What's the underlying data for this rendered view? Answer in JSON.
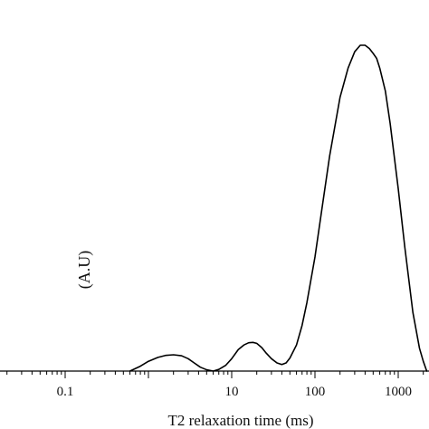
{
  "chart_data": {
    "type": "line",
    "title": "",
    "xlabel": "T2 relaxation time (ms)",
    "ylabel_visible": "(A.U)",
    "x_scale": "log",
    "xlim": [
      0.01,
      2500
    ],
    "ylim": [
      0,
      1.05
    ],
    "x_tick_labels": [
      "0.1",
      "10",
      "100",
      "1000"
    ],
    "x_tick_values": [
      0.1,
      10,
      100,
      1000
    ],
    "grid": false,
    "legend": "none",
    "line_color": "#000000",
    "series": [
      {
        "x": [
          0.6,
          0.8,
          1.0,
          1.3,
          1.6,
          2.0,
          2.5,
          3.0,
          3.5,
          4.2,
          5.0,
          6.0,
          7.0,
          8.5,
          10,
          12,
          14,
          16,
          18,
          20,
          23,
          26,
          30,
          35,
          40,
          45,
          50,
          60,
          70,
          80,
          100,
          120,
          150,
          200,
          250,
          300,
          350,
          400,
          450,
          500,
          550,
          600,
          700,
          800,
          1000,
          1200,
          1500,
          1800,
          2000,
          2200
        ],
        "y": [
          0.0,
          0.015,
          0.03,
          0.042,
          0.048,
          0.05,
          0.047,
          0.038,
          0.026,
          0.012,
          0.004,
          0.0,
          0.005,
          0.018,
          0.038,
          0.066,
          0.08,
          0.087,
          0.088,
          0.085,
          0.072,
          0.055,
          0.038,
          0.025,
          0.02,
          0.025,
          0.04,
          0.08,
          0.14,
          0.21,
          0.35,
          0.49,
          0.66,
          0.84,
          0.93,
          0.98,
          1.0,
          1.0,
          0.99,
          0.975,
          0.96,
          0.93,
          0.86,
          0.76,
          0.56,
          0.38,
          0.18,
          0.07,
          0.03,
          0.0
        ]
      }
    ]
  }
}
